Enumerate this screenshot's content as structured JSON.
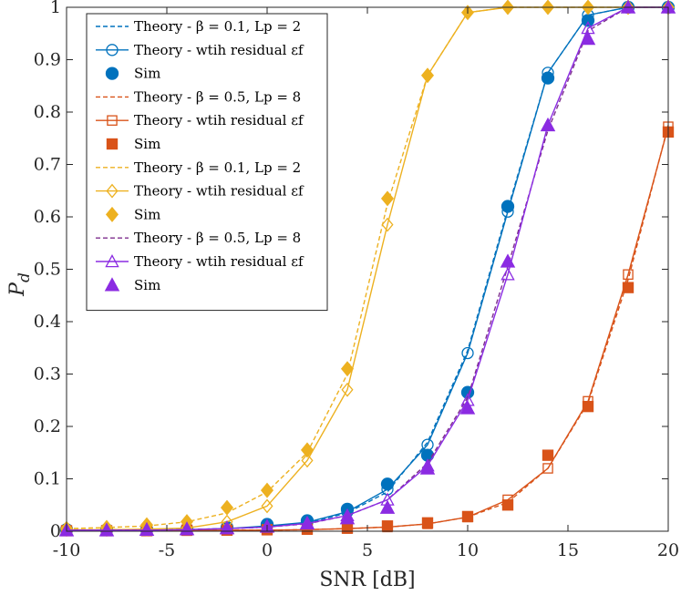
{
  "chart_data": {
    "type": "line",
    "title": "",
    "xlabel": "SNR [dB]",
    "ylabel": {
      "main": "P",
      "sub": "d"
    },
    "xlim": [
      -10,
      20
    ],
    "ylim": [
      0,
      1
    ],
    "xticks": [
      -10,
      -5,
      0,
      5,
      10,
      15,
      20
    ],
    "yticks": [
      0,
      0.1,
      0.2,
      0.3,
      0.4,
      0.5,
      0.6,
      0.7,
      0.8,
      0.9,
      1
    ],
    "xtick_labels": [
      "-10",
      "-5",
      "0",
      "5",
      "10",
      "15",
      "20"
    ],
    "ytick_labels": [
      "0",
      "0.1",
      "0.2",
      "0.3",
      "0.4",
      "0.5",
      "0.6",
      "0.7",
      "0.8",
      "0.9",
      "1"
    ],
    "grid": false,
    "legend_position": "top-left",
    "x": [
      -10,
      -8,
      -6,
      -4,
      -2,
      0,
      2,
      4,
      6,
      8,
      10,
      12,
      14,
      16,
      18,
      20
    ],
    "series": [
      {
        "name": "Theory - β = 0.1, L_p = 2",
        "legend_label": "Theory - β = 0.1, Lp = 2",
        "color": "#0072BD",
        "style": "dashed",
        "marker": "none",
        "values": [
          0.002,
          0.002,
          0.002,
          0.003,
          0.005,
          0.008,
          0.015,
          0.035,
          0.075,
          0.17,
          0.345,
          0.615,
          0.875,
          0.985,
          1.0,
          1.0
        ]
      },
      {
        "name": "Theory - wtih residual ε_f",
        "legend_label": "Theory - wtih residual εf",
        "color": "#0072BD",
        "style": "solid",
        "marker": "circle-open",
        "values": [
          0.002,
          0.002,
          0.002,
          0.003,
          0.005,
          0.01,
          0.017,
          0.037,
          0.08,
          0.165,
          0.34,
          0.61,
          0.875,
          0.985,
          1.0,
          1.0
        ]
      },
      {
        "name": "Sim",
        "legend_label": "Sim",
        "color": "#0072BD",
        "style": "none",
        "marker": "circle-filled",
        "values": [
          0.003,
          0.003,
          0.003,
          0.004,
          0.007,
          0.013,
          0.02,
          0.042,
          0.09,
          0.145,
          0.265,
          0.62,
          0.865,
          0.975,
          1.0,
          1.0
        ]
      },
      {
        "name": "Theory - β = 0.5, L_p = 8",
        "legend_label": "Theory - β = 0.5, Lp = 8",
        "color": "#D95319",
        "style": "dashed",
        "marker": "none",
        "values": [
          0.001,
          0.001,
          0.001,
          0.001,
          0.002,
          0.002,
          0.003,
          0.005,
          0.008,
          0.014,
          0.027,
          0.055,
          0.12,
          0.245,
          0.48,
          0.775
        ]
      },
      {
        "name": "Theory - wtih residual ε_f",
        "legend_label": "Theory - wtih residual εf",
        "color": "#D95319",
        "style": "solid",
        "marker": "square-open",
        "values": [
          0.001,
          0.001,
          0.001,
          0.001,
          0.002,
          0.002,
          0.003,
          0.005,
          0.008,
          0.014,
          0.027,
          0.06,
          0.12,
          0.248,
          0.49,
          0.772
        ]
      },
      {
        "name": "Sim",
        "legend_label": "Sim",
        "color": "#D95319",
        "style": "none",
        "marker": "square-filled",
        "values": [
          0.001,
          0.001,
          0.001,
          0.002,
          0.002,
          0.003,
          0.004,
          0.006,
          0.01,
          0.016,
          0.028,
          0.05,
          0.145,
          0.238,
          0.465,
          0.762
        ]
      },
      {
        "name": "Theory - β = 0.1, L_p = 2",
        "legend_label": "Theory - β = 0.1, Lp = 2",
        "color": "#EDB120",
        "style": "dashed",
        "marker": "none",
        "values": [
          0.005,
          0.007,
          0.01,
          0.018,
          0.035,
          0.075,
          0.15,
          0.3,
          0.625,
          0.87,
          0.99,
          1.0,
          1.0,
          1.0,
          1.0,
          1.0
        ]
      },
      {
        "name": "Theory - wtih residual ε_f",
        "legend_label": "Theory - wtih residual εf",
        "color": "#EDB120",
        "style": "solid",
        "marker": "diamond-open",
        "values": [
          0.003,
          0.003,
          0.004,
          0.006,
          0.018,
          0.048,
          0.135,
          0.27,
          0.585,
          0.87,
          0.99,
          1.0,
          1.0,
          1.0,
          1.0,
          1.0
        ]
      },
      {
        "name": "Sim",
        "legend_label": "Sim",
        "color": "#EDB120",
        "style": "none",
        "marker": "diamond-filled",
        "values": [
          0.005,
          0.007,
          0.012,
          0.018,
          0.045,
          0.078,
          0.155,
          0.31,
          0.635,
          0.87,
          0.99,
          1.0,
          1.0,
          1.0,
          1.0,
          1.0
        ]
      },
      {
        "name": "Theory - β = 0.5, L_p = 8",
        "legend_label": "Theory - β = 0.5, Lp = 8",
        "color": "#7E2F8E",
        "style": "dashed",
        "marker": "none",
        "values": [
          0.002,
          0.002,
          0.002,
          0.003,
          0.005,
          0.008,
          0.014,
          0.03,
          0.06,
          0.13,
          0.255,
          0.505,
          0.765,
          0.955,
          1.0,
          1.0
        ]
      },
      {
        "name": "Theory - wtih residual ε_f",
        "legend_label": "Theory - wtih residual εf",
        "color": "#8B2BE2",
        "style": "solid",
        "marker": "triangle-open",
        "values": [
          0.002,
          0.002,
          0.002,
          0.003,
          0.005,
          0.008,
          0.015,
          0.03,
          0.06,
          0.125,
          0.25,
          0.49,
          0.775,
          0.96,
          1.0,
          1.0
        ]
      },
      {
        "name": "Sim",
        "legend_label": "Sim",
        "color": "#8B2BE2",
        "style": "none",
        "marker": "triangle-filled",
        "values": [
          0.002,
          0.002,
          0.003,
          0.004,
          0.006,
          0.009,
          0.015,
          0.025,
          0.045,
          0.12,
          0.235,
          0.515,
          0.775,
          0.94,
          1.0,
          1.0
        ]
      }
    ]
  }
}
